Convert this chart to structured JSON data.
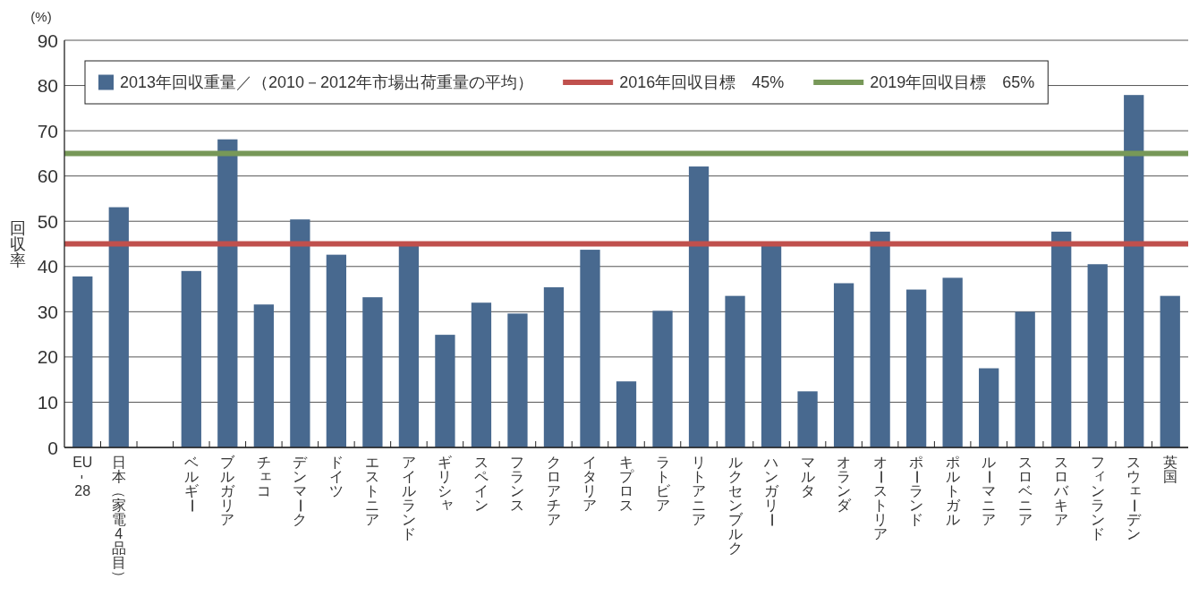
{
  "chart_data": {
    "type": "bar",
    "ylabel": "回収率",
    "annotations": [
      "(%)"
    ],
    "categories": [
      "EU-28",
      "日本（家電4品目）",
      null,
      "ベルギー",
      "ブルガリア",
      "チェコ",
      "デンマーク",
      "ドイツ",
      "エストニア",
      "アイルランド",
      "ギリシャ",
      "スペイン",
      "フランス",
      "クロアチア",
      "イタリア",
      "キプロス",
      "ラトビア",
      "リトアニア",
      "ルクセンブルク",
      "ハンガリー",
      "マルタ",
      "オランダ",
      "オーストリア",
      "ポーランド",
      "ポルトガル",
      "ルーマニア",
      "スロベニア",
      "スロバキア",
      "フィンランド",
      "スウェーデン",
      "英国"
    ],
    "series": [
      {
        "name": "2013年回収重量／（2010－2012年市場出荷重量の平均）",
        "color": "#48698f",
        "values": [
          37.8,
          53.1,
          null,
          39.0,
          68.1,
          31.6,
          50.4,
          42.6,
          33.2,
          45.0,
          24.9,
          32.0,
          29.6,
          35.4,
          43.7,
          14.6,
          30.2,
          62.1,
          33.5,
          44.7,
          12.4,
          36.3,
          47.7,
          34.9,
          37.5,
          17.5,
          30.0,
          47.7,
          40.5,
          77.9,
          33.5
        ]
      }
    ],
    "ref_lines": [
      {
        "axis": "y",
        "value": 45,
        "label": "2016年回収目標　45%",
        "color": "#c0504d"
      },
      {
        "axis": "y",
        "value": 65,
        "label": "2019年回収目標　65%",
        "color": "#779858"
      }
    ],
    "ylim": [
      0,
      90
    ],
    "yticks": [
      0,
      10,
      20,
      30,
      40,
      50,
      60,
      70,
      80,
      90
    ],
    "grid": "y",
    "legend": "top"
  }
}
